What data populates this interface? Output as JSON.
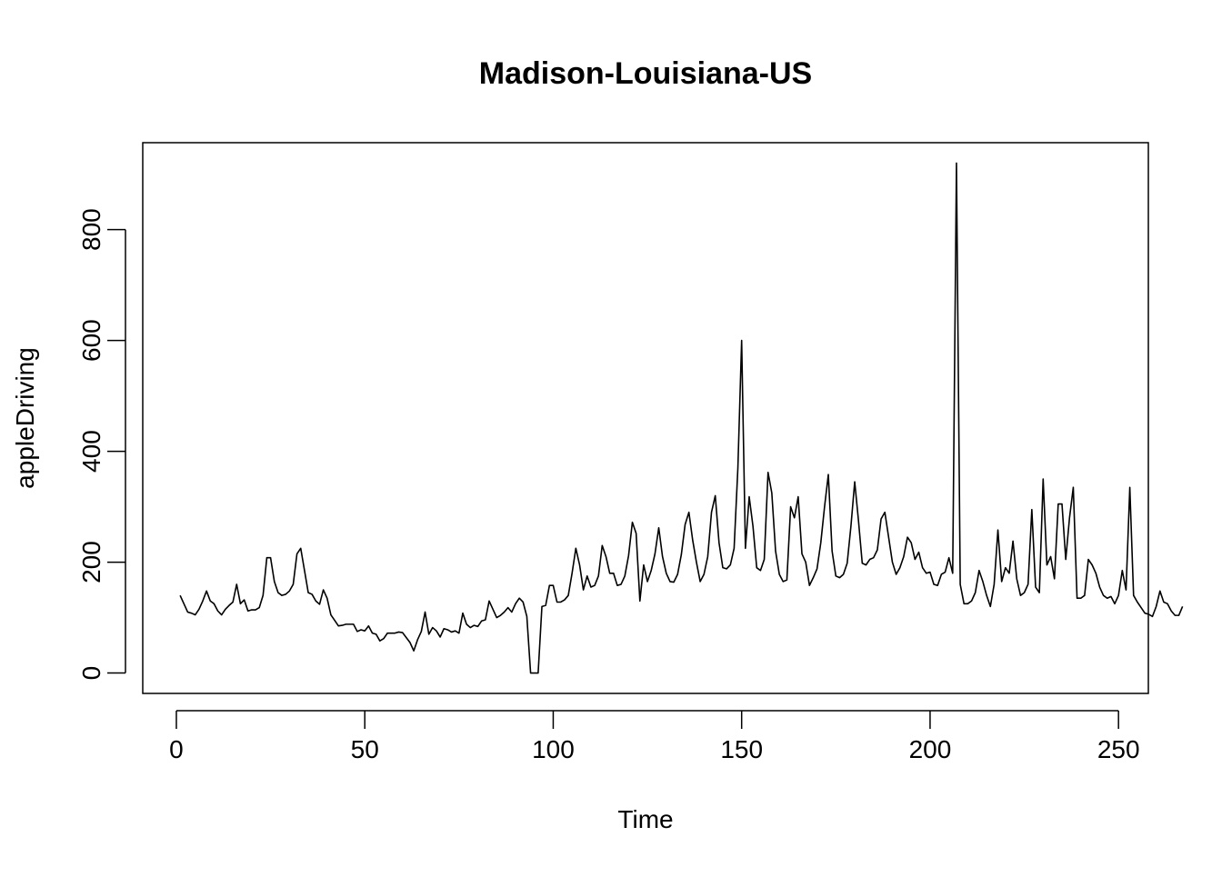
{
  "chart_data": {
    "type": "line",
    "title": "Madison-Louisiana-US",
    "xlabel": "Time",
    "ylabel": "appleDriving",
    "xlim": [
      -8.92,
      257.92
    ],
    "ylim": [
      -36.8,
      956.8
    ],
    "x_ticks": [
      0,
      50,
      100,
      150,
      200,
      250
    ],
    "y_ticks": [
      0,
      200,
      400,
      600,
      800
    ],
    "grid": false,
    "legend": "none",
    "line_color": "#000000",
    "series": [
      {
        "x_start": 1,
        "values": [
          140,
          125,
          110,
          108,
          105,
          115,
          130,
          148,
          130,
          125,
          112,
          105,
          115,
          122,
          128,
          160,
          125,
          132,
          112,
          114,
          114,
          118,
          140,
          208,
          208,
          165,
          145,
          140,
          142,
          148,
          160,
          215,
          225,
          185,
          145,
          142,
          130,
          124,
          150,
          135,
          105,
          95,
          85,
          86,
          88,
          88,
          88,
          75,
          78,
          76,
          85,
          72,
          70,
          58,
          62,
          72,
          72,
          72,
          74,
          73,
          64,
          55,
          40,
          60,
          75,
          110,
          70,
          82,
          76,
          65,
          80,
          78,
          74,
          76,
          72,
          108,
          88,
          82,
          86,
          84,
          94,
          96,
          130,
          115,
          100,
          104,
          110,
          118,
          110,
          125,
          135,
          128,
          102,
          0,
          0,
          0,
          120,
          122,
          158,
          158,
          128,
          128,
          132,
          140,
          180,
          225,
          195,
          150,
          175,
          155,
          158,
          175,
          230,
          210,
          180,
          180,
          158,
          160,
          175,
          212,
          272,
          252,
          130,
          195,
          165,
          185,
          215,
          262,
          210,
          180,
          165,
          164,
          178,
          214,
          268,
          290,
          240,
          200,
          165,
          178,
          210,
          290,
          320,
          235,
          190,
          188,
          195,
          225,
          370,
          600,
          225,
          318,
          265,
          190,
          185,
          205,
          362,
          325,
          220,
          178,
          165,
          168,
          300,
          280,
          318,
          215,
          200,
          158,
          172,
          188,
          235,
          300,
          358,
          220,
          175,
          172,
          178,
          198,
          265,
          345,
          275,
          198,
          195,
          205,
          208,
          222,
          278,
          290,
          245,
          200,
          178,
          190,
          210,
          245,
          235,
          205,
          218,
          190,
          180,
          182,
          160,
          158,
          178,
          182,
          208,
          180,
          920,
          160,
          125,
          125,
          130,
          145,
          185,
          165,
          140,
          120,
          160,
          258,
          165,
          190,
          180,
          238,
          170,
          140,
          145,
          160,
          295,
          155,
          145,
          350,
          195,
          210,
          170,
          305,
          305,
          205,
          280,
          335,
          135,
          135,
          140,
          205,
          195,
          180,
          155,
          140,
          135,
          138,
          125,
          140,
          185,
          150,
          335,
          140,
          128,
          118,
          108,
          106,
          102,
          120,
          148,
          128,
          125,
          112,
          104,
          104,
          120
        ]
      }
    ]
  }
}
